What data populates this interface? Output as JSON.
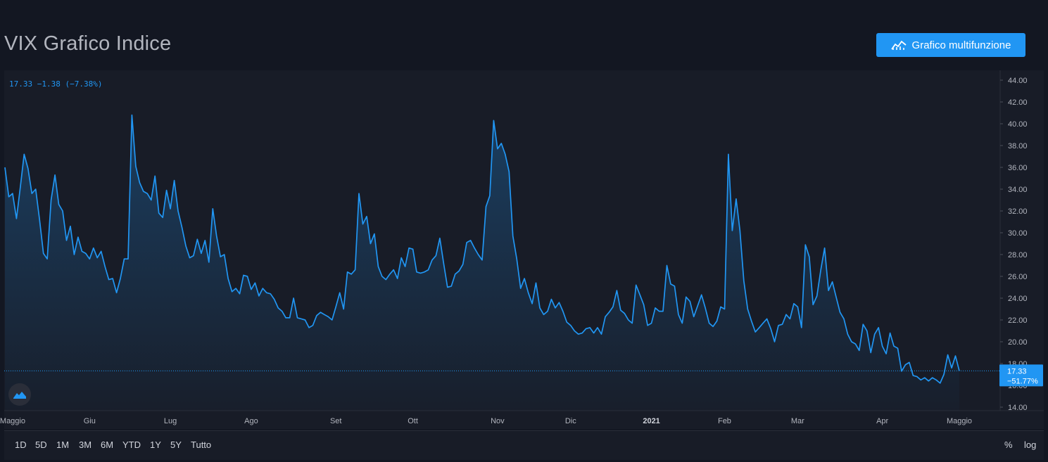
{
  "header": {
    "title": "VIX Grafico Indice",
    "button_label": "Grafico multifunzione"
  },
  "readout": {
    "text": "17.33 −1.38 (−7.38%)"
  },
  "last_price": {
    "value": "17.33",
    "change": "−51.77%"
  },
  "footer": {
    "ranges": [
      "1D",
      "5D",
      "1M",
      "3M",
      "6M",
      "YTD",
      "1Y",
      "5Y",
      "Tutto"
    ],
    "scale_percent": "%",
    "scale_log": "log"
  },
  "colors": {
    "line": "#2196f3",
    "background": "#131722",
    "panel": "#181c27"
  },
  "icons": {
    "button": "chart-line-icon",
    "logo": "tradingview-logo-icon"
  },
  "chart_data": {
    "type": "area",
    "ylim": [
      14,
      44
    ],
    "y_ticks": [
      "14.00",
      "16.00",
      "18.00",
      "20.00",
      "22.00",
      "24.00",
      "26.00",
      "28.00",
      "30.00",
      "32.00",
      "34.00",
      "36.00",
      "38.00",
      "40.00",
      "42.00",
      "44.00"
    ],
    "x_labels": [
      {
        "label": "Maggio",
        "index": 2
      },
      {
        "label": "Giu",
        "index": 22
      },
      {
        "label": "Lug",
        "index": 43
      },
      {
        "label": "Ago",
        "index": 64
      },
      {
        "label": "Set",
        "index": 86
      },
      {
        "label": "Ott",
        "index": 106
      },
      {
        "label": "Nov",
        "index": 128
      },
      {
        "label": "Dic",
        "index": 147
      },
      {
        "label": "2021",
        "index": 168
      },
      {
        "label": "Feb",
        "index": 187
      },
      {
        "label": "Mar",
        "index": 206
      },
      {
        "label": "Apr",
        "index": 228
      },
      {
        "label": "Maggio",
        "index": 248
      }
    ],
    "last_value": 17.33,
    "values": [
      36.0,
      33.3,
      33.6,
      31.3,
      34.2,
      37.2,
      35.9,
      33.6,
      34.0,
      31.2,
      28.1,
      27.6,
      33.0,
      35.3,
      32.6,
      32.0,
      29.3,
      30.6,
      28.0,
      29.6,
      28.3,
      28.1,
      27.6,
      28.6,
      27.7,
      28.3,
      26.9,
      25.7,
      25.8,
      24.5,
      25.8,
      27.6,
      27.6,
      40.8,
      36.1,
      34.6,
      33.8,
      33.6,
      33.0,
      35.2,
      31.8,
      31.4,
      33.9,
      32.2,
      34.8,
      32.0,
      30.5,
      28.8,
      27.7,
      27.9,
      29.4,
      28.1,
      29.3,
      27.3,
      32.2,
      29.7,
      27.8,
      28.0,
      25.8,
      24.6,
      24.9,
      24.4,
      26.1,
      26.0,
      24.8,
      25.4,
      24.2,
      24.9,
      24.5,
      24.4,
      23.9,
      23.1,
      22.8,
      22.2,
      22.2,
      24.0,
      22.2,
      22.1,
      22.0,
      21.3,
      21.5,
      22.4,
      22.7,
      22.5,
      22.3,
      22.0,
      23.2,
      24.5,
      23.0,
      26.4,
      26.2,
      26.6,
      33.6,
      30.8,
      31.5,
      29.0,
      29.9,
      26.9,
      26.0,
      25.7,
      26.2,
      26.6,
      25.8,
      27.7,
      26.9,
      28.6,
      28.5,
      26.4,
      26.3,
      26.4,
      26.6,
      27.5,
      27.9,
      29.5,
      27.2,
      25.0,
      25.1,
      26.2,
      26.5,
      27.1,
      29.1,
      29.3,
      28.6,
      28.0,
      27.5,
      32.4,
      33.4,
      40.3,
      37.7,
      38.2,
      37.2,
      35.6,
      29.7,
      27.6,
      24.9,
      25.8,
      24.5,
      23.5,
      25.4,
      23.1,
      22.5,
      22.8,
      23.9,
      23.1,
      23.6,
      22.8,
      21.8,
      21.5,
      21.0,
      20.7,
      20.8,
      21.2,
      21.3,
      20.8,
      21.3,
      20.7,
      22.3,
      22.7,
      23.2,
      24.7,
      22.9,
      22.6,
      22.0,
      21.7,
      25.2,
      24.3,
      23.4,
      21.5,
      21.7,
      23.1,
      22.8,
      22.8,
      27.0,
      25.3,
      25.1,
      22.5,
      21.7,
      24.1,
      23.7,
      22.3,
      23.3,
      24.3,
      23.1,
      21.7,
      21.4,
      21.9,
      23.2,
      23.0,
      37.2,
      30.2,
      33.1,
      30.2,
      25.6,
      23.0,
      21.9,
      20.9,
      21.3,
      21.7,
      22.1,
      21.2,
      20.0,
      21.5,
      21.6,
      22.5,
      22.1,
      23.5,
      23.2,
      21.3,
      28.9,
      27.8,
      23.4,
      24.2,
      26.6,
      28.6,
      24.7,
      25.5,
      24.1,
      22.7,
      22.1,
      20.7,
      20.0,
      19.8,
      19.2,
      21.6,
      21.0,
      19.0,
      20.7,
      21.3,
      19.6,
      18.9,
      20.8,
      19.6,
      19.4,
      17.3,
      17.9,
      18.1,
      16.9,
      16.8,
      16.5,
      16.7,
      16.4,
      16.7,
      16.5,
      16.2,
      17.0,
      18.8,
      17.6,
      18.7,
      17.33
    ]
  }
}
